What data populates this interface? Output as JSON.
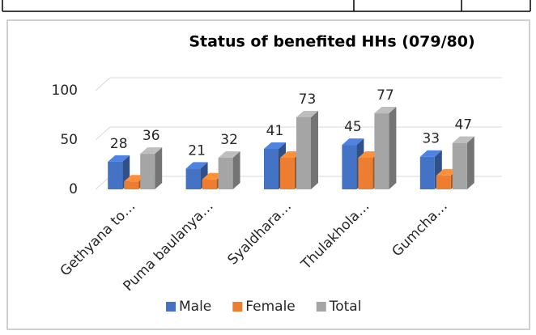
{
  "chart_data": {
    "type": "bar3d",
    "title": "Status of benefited HHs (079/80)",
    "categories": [
      "Gethyana to…",
      "Puma baulanya…",
      "Syaldhara…",
      "Thulakhola…",
      "Gumcha…"
    ],
    "series": [
      {
        "name": "Male",
        "color": "#4472c4",
        "values": [
          28,
          21,
          41,
          45,
          33
        ],
        "show_labels": true
      },
      {
        "name": "Female",
        "color": "#ed7d31",
        "values": [
          8,
          10,
          32,
          32,
          14
        ],
        "show_labels": false
      },
      {
        "name": "Total",
        "color": "#a5a5a5",
        "values": [
          36,
          32,
          73,
          77,
          47
        ],
        "show_labels": true
      }
    ],
    "ylim": [
      0,
      100
    ],
    "yticks": [
      0,
      50,
      100
    ],
    "grid": true,
    "legend": "bottom"
  }
}
